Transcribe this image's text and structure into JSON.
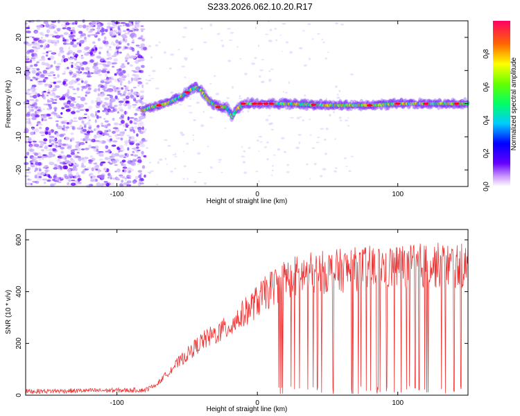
{
  "title": "S233.2026.062.10.20.R17",
  "chart_data": [
    {
      "type": "heatmap",
      "name": "spectrogram",
      "xlabel": "Height of straight line (km)",
      "ylabel": "Frequency (Hz)",
      "xlim": [
        -165,
        150
      ],
      "ylim": [
        -25,
        25
      ],
      "xticks": [
        -100,
        0,
        100
      ],
      "yticks": [
        -20,
        -10,
        0,
        10,
        20
      ],
      "noise_region_x": [
        -165,
        -80
      ],
      "trace": {
        "x": [
          -82,
          -75,
          -65,
          -55,
          -48,
          -44,
          -40,
          -35,
          -28,
          -22,
          -18,
          -15,
          -10,
          0,
          20,
          50,
          80,
          100,
          120,
          145
        ],
        "y": [
          -2,
          -1,
          0,
          2,
          4,
          5,
          4,
          1,
          -1,
          -1,
          -4,
          -2,
          0,
          0,
          0,
          -0.5,
          -0.5,
          0,
          0,
          0
        ]
      },
      "colorbar": {
        "label": "Normalized spectral amplitude",
        "range": [
          0,
          1
        ],
        "ticks": [
          "0.0",
          "0.2",
          "0.4",
          "0.6",
          "0.8"
        ]
      }
    },
    {
      "type": "line",
      "name": "snr",
      "xlabel": "Height of straight line (km)",
      "ylabel": "SNR (10 * v/v)",
      "xlim": [
        -165,
        150
      ],
      "ylim": [
        0,
        640
      ],
      "xticks": [
        -100,
        0,
        100
      ],
      "yticks": [
        0,
        200,
        400,
        600
      ],
      "color": "#ee3333",
      "envelope": {
        "x": [
          -165,
          -80,
          -72,
          -60,
          -50,
          -40,
          -30,
          -20,
          -10,
          0,
          10,
          20,
          40,
          60,
          80,
          100,
          120,
          150
        ],
        "y": [
          15,
          20,
          40,
          110,
          160,
          210,
          240,
          270,
          320,
          370,
          420,
          460,
          480,
          490,
          500,
          505,
          510,
          510
        ]
      }
    }
  ]
}
